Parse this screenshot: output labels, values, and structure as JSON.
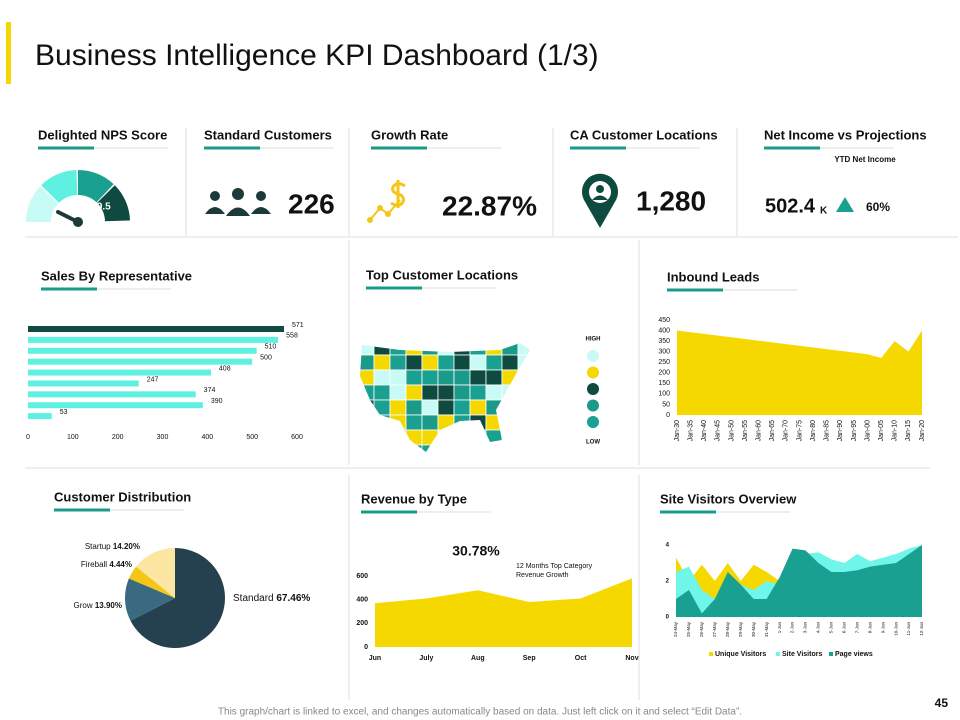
{
  "title": "Business Intelligence KPI Dashboard (1/3)",
  "kpis": [
    {
      "label": "Delighted NPS Score",
      "value": "89.5"
    },
    {
      "label": "Standard Customers",
      "value": "226"
    },
    {
      "label": "Growth Rate",
      "value": "22.87%"
    },
    {
      "label": "CA Customer Locations",
      "value": "1,280"
    },
    {
      "label": "Net Income vs Projections",
      "subtitle": "YTD Net Income",
      "value": "502.4",
      "unit": "K",
      "change": "60%"
    }
  ],
  "chart_data": [
    {
      "type": "hbar",
      "title": "Sales By Representative",
      "values": [
        571,
        558,
        510,
        500,
        408,
        247,
        374,
        390,
        53
      ],
      "colors": [
        "#134a44",
        "#5ef0e0",
        "#5ef0e0",
        "#5ef0e0",
        "#5ef0e0",
        "#5ef0e0",
        "#5ef0e0",
        "#5ef0e0",
        "#5ef0e0"
      ],
      "xlim": [
        0,
        600
      ],
      "xticks": [
        0,
        100,
        200,
        300,
        400,
        500,
        600
      ]
    },
    {
      "type": "map",
      "title": "Top Customer Locations",
      "legend_labels": [
        "HIGH",
        "LOW"
      ],
      "colors": [
        "#c8fbf5",
        "#f5d800",
        "#0e4a40",
        "#1a9a88",
        "#1aa090"
      ]
    },
    {
      "type": "area",
      "title": "Inbound Leads",
      "categories": [
        "Jan-30",
        "Jan-35",
        "Jan-40",
        "Jan-45",
        "Jan-50",
        "Jan-55",
        "Jan-60",
        "Jan-65",
        "Jan-70",
        "Jan-75",
        "Jan-80",
        "Jan-85",
        "Jan-90",
        "Jan-95",
        "Jan-00",
        "Jan-05",
        "Jan-10",
        "Jan-15",
        "Jan-20"
      ],
      "series": [
        {
          "name": "Inbound Leads",
          "color": "#f5d800",
          "values": [
            400,
            392,
            384,
            376,
            368,
            360,
            352,
            344,
            336,
            328,
            320,
            312,
            304,
            296,
            288,
            270,
            350,
            300,
            400
          ]
        }
      ],
      "ylim": [
        0,
        450
      ],
      "yticks": [
        0,
        50,
        100,
        150,
        200,
        250,
        300,
        350,
        400,
        450
      ]
    },
    {
      "type": "pie",
      "title": "Customer Distribution",
      "categories": [
        "Standard",
        "Grow",
        "Fireball",
        "Startup"
      ],
      "values": [
        67.46,
        13.9,
        4.44,
        14.2
      ],
      "value_labels": [
        "67.46%",
        "13.90%",
        "4.44%",
        "14.20%"
      ],
      "colors": [
        "#25404f",
        "#3a6a80",
        "#f5c518",
        "#fbe7a1"
      ]
    },
    {
      "type": "area",
      "title": "Revenue by Type",
      "annotation": "30.78%",
      "note_lines": [
        "12 Months Top Category",
        "Revenue Growth"
      ],
      "categories": [
        "Jun",
        "July",
        "Aug",
        "Sep",
        "Oct",
        "Nov"
      ],
      "series": [
        {
          "name": "Revenue",
          "color": "#f5d800",
          "values": [
            370,
            410,
            480,
            380,
            410,
            580
          ]
        }
      ],
      "ylim": [
        0,
        600
      ],
      "yticks": [
        0,
        200,
        400,
        600
      ]
    },
    {
      "type": "area",
      "title": "Site Visitors Overview",
      "legend": true,
      "categories": [
        "24-May",
        "25-May",
        "26-May",
        "27-May",
        "28-May",
        "29-May",
        "30-May",
        "31-May",
        "1-Jun",
        "2-Jun",
        "3-Jun",
        "4-Jun",
        "5-Jun",
        "6-Jun",
        "7-Jun",
        "8-Jun",
        "9-Jun",
        "10-Jun",
        "11-Jun",
        "12-Jun"
      ],
      "series": [
        {
          "name": "Unique Visitors",
          "color": "#f5d800",
          "values": [
            3.3,
            2.0,
            2.9,
            2.0,
            3.0,
            2.0,
            2.9,
            2.5,
            2.0,
            2.0,
            2.0,
            2.0,
            2.0,
            2.0,
            2.0,
            2.0,
            2.0,
            2.0,
            2.0,
            2.0
          ]
        },
        {
          "name": "Site Visitors",
          "color": "#6ff5ea",
          "values": [
            2.5,
            2.8,
            1.5,
            1.0,
            2.0,
            1.8,
            1.5,
            2.0,
            1.8,
            2.2,
            3.5,
            3.6,
            3.2,
            3.0,
            3.5,
            3.1,
            3.3,
            3.5,
            3.8,
            4.0
          ]
        },
        {
          "name": "Page views",
          "color": "#1aa090",
          "values": [
            1.0,
            1.5,
            0.2,
            1.0,
            2.5,
            1.8,
            1.0,
            1.0,
            2.2,
            3.8,
            3.7,
            3.0,
            2.5,
            2.5,
            2.6,
            2.8,
            2.9,
            3.0,
            3.5,
            4.0
          ]
        }
      ],
      "ylim": [
        0,
        4
      ],
      "yticks": [
        0,
        2,
        4
      ]
    }
  ],
  "footer": "This graph/chart is linked to excel, and changes automatically  based on data. Just left click on it and select “Edit Data”.",
  "page_number": "45"
}
